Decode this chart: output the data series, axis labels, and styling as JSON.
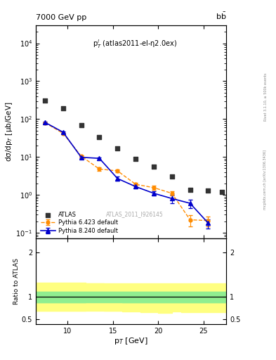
{
  "title_left": "7000 GeV pp",
  "title_right": "b$\\bar{b}$",
  "annotation": "p$_T^l$ (atlas2011-el-η2.0ex)",
  "watermark": "ATLAS_2011_I926145",
  "right_label_top": "Rivet 3.1.10, ≥ 500k events",
  "right_label_bot": "mcplots.cern.ch [arXiv:1306.3436]",
  "xlabel": "p$_T$ [GeV]",
  "ylabel": "dσ/dp$_T$ [μb/GeV]",
  "ylabel_ratio": "Ratio to ATLAS",
  "xlim": [
    6.5,
    27.5
  ],
  "ylim_log": [
    0.07,
    30000
  ],
  "ylim_ratio": [
    0.4,
    2.3
  ],
  "atlas_x": [
    7.5,
    9.5,
    11.5,
    13.5,
    15.5,
    17.5,
    19.5,
    21.5,
    23.5,
    25.5,
    27.0
  ],
  "atlas_y": [
    310,
    195,
    70,
    33,
    17,
    9.0,
    5.5,
    3.0,
    1.35,
    1.3,
    1.2
  ],
  "atlas_color": "#333333",
  "pythia6_x": [
    7.5,
    9.5,
    11.5,
    13.5,
    15.5,
    17.5,
    19.5,
    21.5,
    23.5,
    25.5
  ],
  "pythia6_y": [
    80,
    42,
    10.5,
    4.8,
    4.3,
    1.9,
    1.55,
    1.1,
    0.22,
    0.21
  ],
  "pythia6_yerr_lo": [
    2,
    2,
    0.5,
    0.5,
    0.4,
    0.2,
    0.2,
    0.15,
    0.07,
    0.06
  ],
  "pythia6_yerr_hi": [
    2,
    2,
    0.5,
    0.5,
    0.4,
    0.2,
    0.2,
    0.15,
    0.07,
    0.06
  ],
  "pythia6_color": "#ff8c00",
  "pythia8_x": [
    7.5,
    9.5,
    11.5,
    13.5,
    15.5,
    17.5,
    19.5,
    21.5,
    23.5,
    25.5
  ],
  "pythia8_y": [
    82,
    45,
    9.8,
    9.2,
    2.7,
    1.65,
    1.1,
    0.8,
    0.6,
    0.18
  ],
  "pythia8_yerr_lo": [
    2,
    2,
    0.5,
    0.5,
    0.3,
    0.2,
    0.15,
    0.2,
    0.15,
    0.05
  ],
  "pythia8_yerr_hi": [
    2,
    2,
    0.5,
    0.5,
    0.3,
    0.2,
    0.15,
    0.2,
    0.15,
    0.05
  ],
  "pythia8_color": "#0000cc",
  "green_band_lo": 0.88,
  "green_band_hi": 1.12,
  "yellow_band_lo": 0.7,
  "yellow_band_hi": 1.3,
  "green_color": "#90ee90",
  "yellow_color": "#ffff80",
  "legend_entries": [
    "ATLAS",
    "Pythia 6.423 default",
    "Pythia 8.240 default"
  ]
}
